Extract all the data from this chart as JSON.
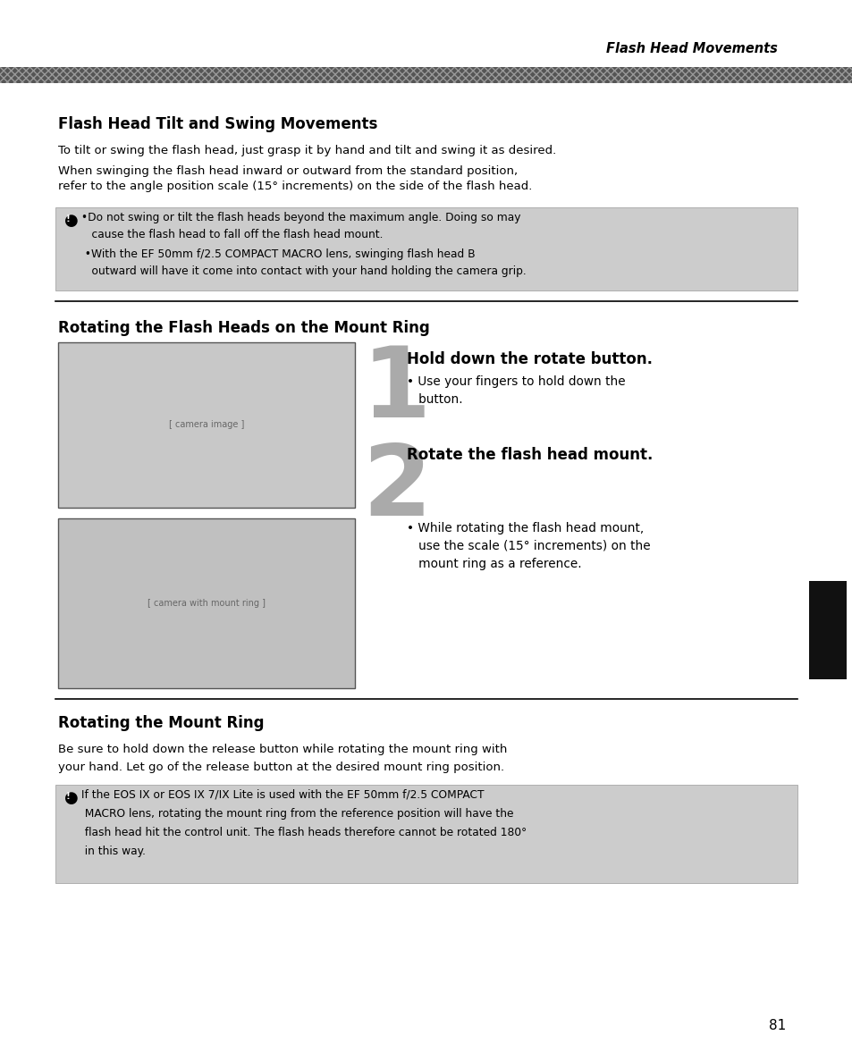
{
  "bg_color": "#ffffff",
  "header_text": "Flash Head Movements",
  "section1_title": "Flash Head Tilt and Swing Movements",
  "section1_body1": "To tilt or swing the flash head, just grasp it by hand and tilt and swing it as desired.",
  "section1_body2": "When swinging the flash head inward or outward from the standard position,\nrefer to the angle position scale (15° increments) on the side of the flash head.",
  "warning1_icon_text": "●",
  "warning1_line1": " •Do not swing or tilt the flash heads beyond the maximum angle. Doing so may",
  "warning1_line2": "    cause the flash head to fall off the flash head mount.",
  "warning1_line3": "  •With the EF 50mm f/2.5 COMPACT MACRO lens, swinging flash head B",
  "warning1_line4": "    outward will have it come into contact with your hand holding the camera grip.",
  "warning_bg": "#cccccc",
  "section2_title": "Rotating the Flash Heads on the Mount Ring",
  "step1_num": "1",
  "step1_title": "Hold down the rotate button.",
  "step1_body1": "• Use your fingers to hold down the",
  "step1_body2": "   button.",
  "step2_num": "2",
  "step2_title": "Rotate the flash head mount.",
  "step2_body1": "• While rotating the flash head mount,",
  "step2_body2": "   use the scale (15° increments) on the",
  "step2_body3": "   mount ring as a reference.",
  "section3_title": "Rotating the Mount Ring",
  "section3_body1": "Be sure to hold down the release button while rotating the mount ring with",
  "section3_body2": "your hand. Let go of the release button at the desired mount ring position.",
  "warning2_icon_text": "●",
  "warning2_line1": " If the EOS IX or EOS IX 7/IX Lite is used with the EF 50mm f/2.5 COMPACT",
  "warning2_line2": "  MACRO lens, rotating the mount ring from the reference position will have the",
  "warning2_line3": "  flash head hit the control unit. The flash heads therefore cannot be rotated 180°",
  "warning2_line4": "  in this way.",
  "page_number": "81",
  "tab_color": "#111111"
}
